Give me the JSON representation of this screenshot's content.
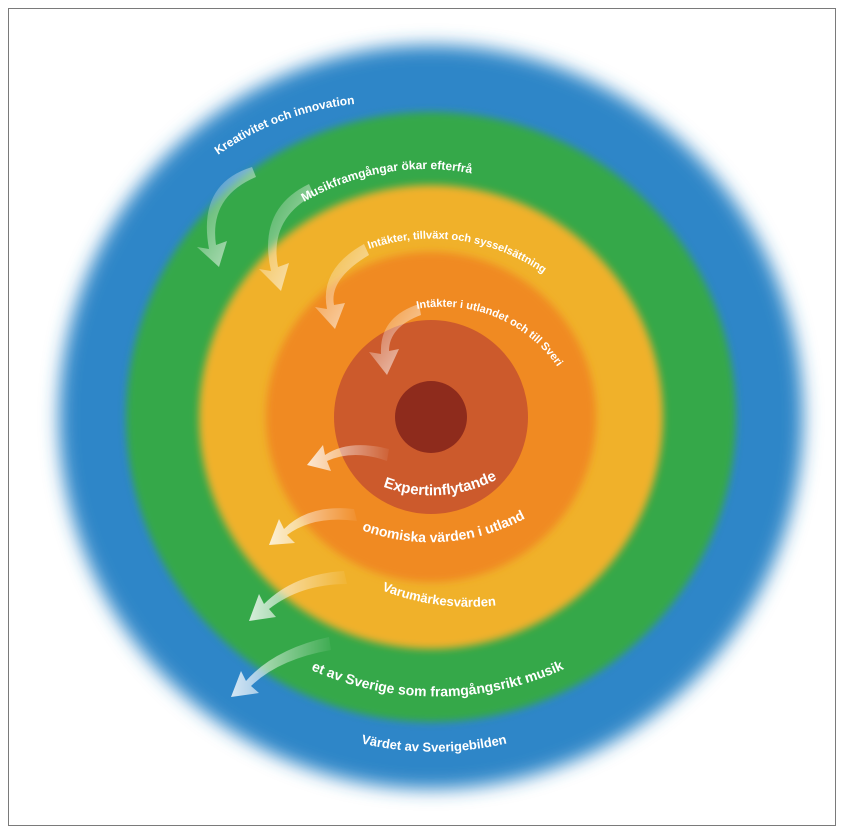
{
  "diagram": {
    "rings": [
      {
        "name": "outer-blue",
        "color": "#2e86c8"
      },
      {
        "name": "green",
        "color": "#35a84a"
      },
      {
        "name": "yellow",
        "color": "#f0b12a"
      },
      {
        "name": "orange",
        "color": "#f08a24"
      },
      {
        "name": "dark-orange",
        "color": "#cc5a2c"
      },
      {
        "name": "core",
        "color": "#8e2b1c"
      }
    ],
    "inward_labels": [
      "Kreativitet och innovation",
      "Musikframgångar ökar efterfrågan",
      "Intäkter, tillväxt och sysselsättning",
      "Intäkter i utlandet och till Sverige"
    ],
    "outward_labels": [
      "Expertinflytande",
      "Ekonomiska värden i utlandet",
      "Varumärkesvärden",
      "Värdet av Sverige som framgångsrikt musikland",
      "Värdet av Sverigebilden"
    ]
  }
}
